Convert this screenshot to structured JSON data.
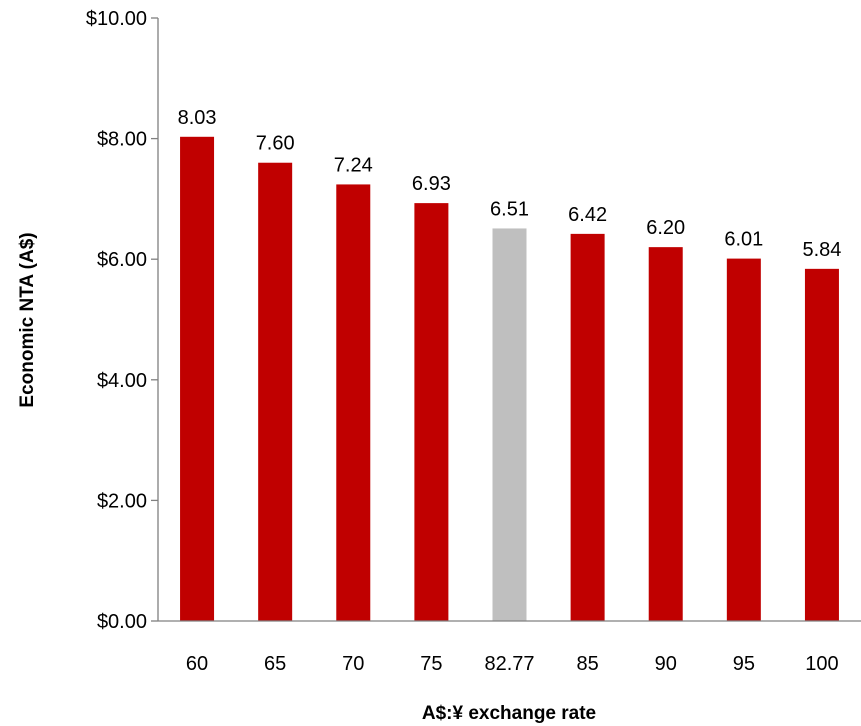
{
  "chart_data": {
    "type": "bar",
    "categories": [
      "60",
      "65",
      "70",
      "75",
      "82.77",
      "85",
      "90",
      "95",
      "100"
    ],
    "values": [
      8.03,
      7.6,
      7.24,
      6.93,
      6.51,
      6.42,
      6.2,
      6.01,
      5.84
    ],
    "value_labels": [
      "8.03",
      "7.60",
      "7.24",
      "6.93",
      "6.51",
      "6.42",
      "6.20",
      "6.01",
      "5.84"
    ],
    "highlight_index": 4,
    "colors": {
      "bar": "#C00000",
      "highlight": "#BFBFBF",
      "axis": "#808080"
    },
    "xlabel": "A$:¥ exchange rate",
    "ylabel": "Economic NTA (A$)",
    "ylim": [
      0,
      10
    ],
    "yticks": [
      0,
      2,
      4,
      6,
      8,
      10
    ],
    "ytick_labels": [
      "$0.00",
      "$2.00",
      "$4.00",
      "$6.00",
      "$8.00",
      "$10.00"
    ],
    "grid": false,
    "legend": "none"
  }
}
